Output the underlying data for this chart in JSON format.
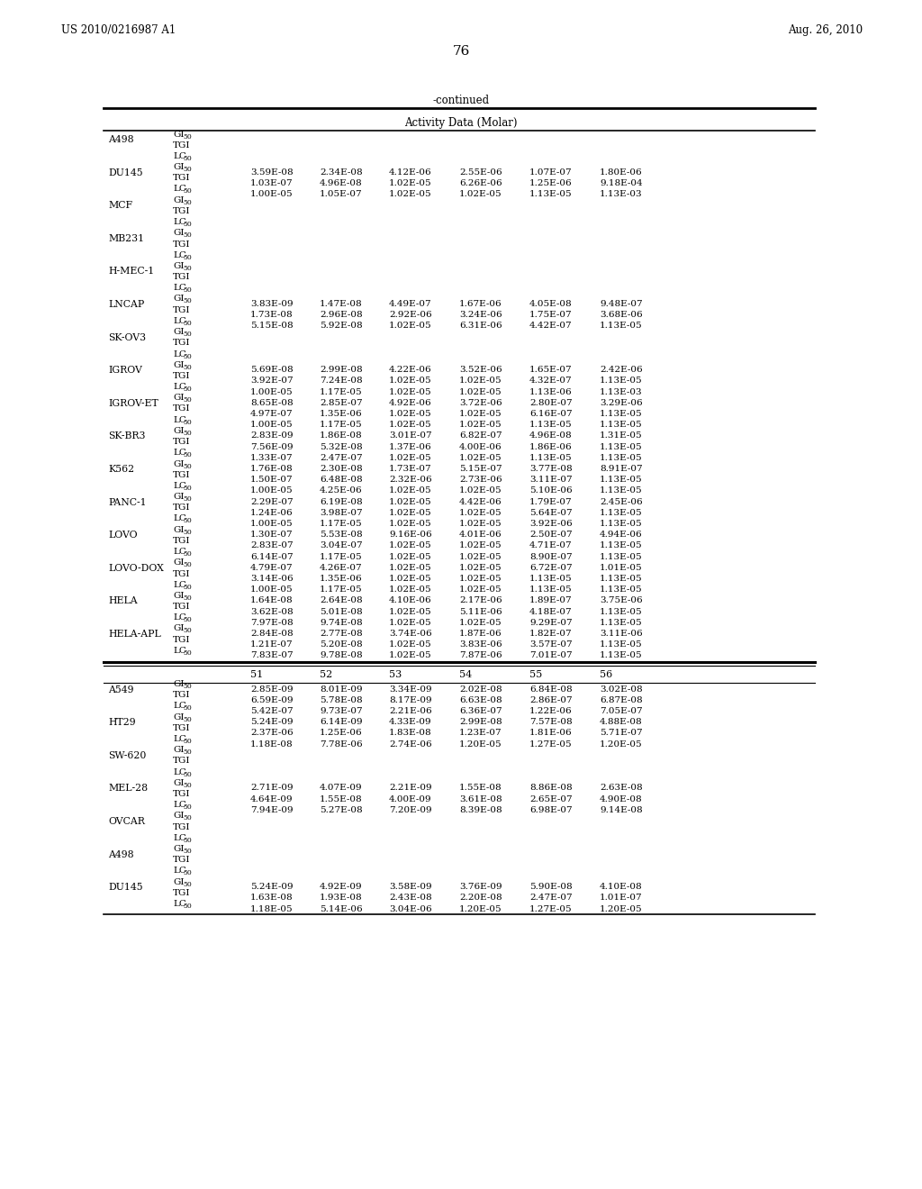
{
  "header_left": "US 2010/0216987 A1",
  "header_right": "Aug. 26, 2010",
  "page_number": "76",
  "continued_label": "-continued",
  "table_header": "Activity Data (Molar)",
  "section1_rows": [
    [
      "A498",
      "GI50",
      "",
      "",
      "",
      "",
      "",
      ""
    ],
    [
      "",
      "TGI",
      "",
      "",
      "",
      "",
      "",
      ""
    ],
    [
      "",
      "LC50",
      "",
      "",
      "",
      "",
      "",
      ""
    ],
    [
      "DU145",
      "GI50",
      "3.59E-08",
      "2.34E-08",
      "4.12E-06",
      "2.55E-06",
      "1.07E-07",
      "1.80E-06"
    ],
    [
      "",
      "TGI",
      "1.03E-07",
      "4.96E-08",
      "1.02E-05",
      "6.26E-06",
      "1.25E-06",
      "9.18E-04"
    ],
    [
      "",
      "LC50",
      "1.00E-05",
      "1.05E-07",
      "1.02E-05",
      "1.02E-05",
      "1.13E-05",
      "1.13E-03"
    ],
    [
      "MCF",
      "GI50",
      "",
      "",
      "",
      "",
      "",
      ""
    ],
    [
      "",
      "TGI",
      "",
      "",
      "",
      "",
      "",
      ""
    ],
    [
      "",
      "LC50",
      "",
      "",
      "",
      "",
      "",
      ""
    ],
    [
      "MB231",
      "GI50",
      "",
      "",
      "",
      "",
      "",
      ""
    ],
    [
      "",
      "TGI",
      "",
      "",
      "",
      "",
      "",
      ""
    ],
    [
      "",
      "LC50",
      "",
      "",
      "",
      "",
      "",
      ""
    ],
    [
      "H-MEC-1",
      "GI50",
      "",
      "",
      "",
      "",
      "",
      ""
    ],
    [
      "",
      "TGI",
      "",
      "",
      "",
      "",
      "",
      ""
    ],
    [
      "",
      "LC50",
      "",
      "",
      "",
      "",
      "",
      ""
    ],
    [
      "LNCAP",
      "GI50",
      "3.83E-09",
      "1.47E-08",
      "4.49E-07",
      "1.67E-06",
      "4.05E-08",
      "9.48E-07"
    ],
    [
      "",
      "TGI",
      "1.73E-08",
      "2.96E-08",
      "2.92E-06",
      "3.24E-06",
      "1.75E-07",
      "3.68E-06"
    ],
    [
      "",
      "LC50",
      "5.15E-08",
      "5.92E-08",
      "1.02E-05",
      "6.31E-06",
      "4.42E-07",
      "1.13E-05"
    ],
    [
      "SK-OV3",
      "GI50",
      "",
      "",
      "",
      "",
      "",
      ""
    ],
    [
      "",
      "TGI",
      "",
      "",
      "",
      "",
      "",
      ""
    ],
    [
      "",
      "LC50",
      "",
      "",
      "",
      "",
      "",
      ""
    ],
    [
      "IGROV",
      "GI50",
      "5.69E-08",
      "2.99E-08",
      "4.22E-06",
      "3.52E-06",
      "1.65E-07",
      "2.42E-06"
    ],
    [
      "",
      "TGI",
      "3.92E-07",
      "7.24E-08",
      "1.02E-05",
      "1.02E-05",
      "4.32E-07",
      "1.13E-05"
    ],
    [
      "",
      "LC50",
      "1.00E-05",
      "1.17E-05",
      "1.02E-05",
      "1.02E-05",
      "1.13E-06",
      "1.13E-03"
    ],
    [
      "IGROV-ET",
      "GI50",
      "8.65E-08",
      "2.85E-07",
      "4.92E-06",
      "3.72E-06",
      "2.80E-07",
      "3.29E-06"
    ],
    [
      "",
      "TGI",
      "4.97E-07",
      "1.35E-06",
      "1.02E-05",
      "1.02E-05",
      "6.16E-07",
      "1.13E-05"
    ],
    [
      "",
      "LC50",
      "1.00E-05",
      "1.17E-05",
      "1.02E-05",
      "1.02E-05",
      "1.13E-05",
      "1.13E-05"
    ],
    [
      "SK-BR3",
      "GI50",
      "2.83E-09",
      "1.86E-08",
      "3.01E-07",
      "6.82E-07",
      "4.96E-08",
      "1.31E-05"
    ],
    [
      "",
      "TGI",
      "7.56E-09",
      "5.32E-08",
      "1.37E-06",
      "4.00E-06",
      "1.86E-06",
      "1.13E-05"
    ],
    [
      "",
      "LC50",
      "1.33E-07",
      "2.47E-07",
      "1.02E-05",
      "1.02E-05",
      "1.13E-05",
      "1.13E-05"
    ],
    [
      "K562",
      "GI50",
      "1.76E-08",
      "2.30E-08",
      "1.73E-07",
      "5.15E-07",
      "3.77E-08",
      "8.91E-07"
    ],
    [
      "",
      "TGI",
      "1.50E-07",
      "6.48E-08",
      "2.32E-06",
      "2.73E-06",
      "3.11E-07",
      "1.13E-05"
    ],
    [
      "",
      "LC50",
      "1.00E-05",
      "4.25E-06",
      "1.02E-05",
      "1.02E-05",
      "5.10E-06",
      "1.13E-05"
    ],
    [
      "PANC-1",
      "GI50",
      "2.29E-07",
      "6.19E-08",
      "1.02E-05",
      "4.42E-06",
      "1.79E-07",
      "2.45E-06"
    ],
    [
      "",
      "TGI",
      "1.24E-06",
      "3.98E-07",
      "1.02E-05",
      "1.02E-05",
      "5.64E-07",
      "1.13E-05"
    ],
    [
      "",
      "LC50",
      "1.00E-05",
      "1.17E-05",
      "1.02E-05",
      "1.02E-05",
      "3.92E-06",
      "1.13E-05"
    ],
    [
      "LOVO",
      "GI50",
      "1.30E-07",
      "5.53E-08",
      "9.16E-06",
      "4.01E-06",
      "2.50E-07",
      "4.94E-06"
    ],
    [
      "",
      "TGI",
      "2.83E-07",
      "3.04E-07",
      "1.02E-05",
      "1.02E-05",
      "4.71E-07",
      "1.13E-05"
    ],
    [
      "",
      "LC50",
      "6.14E-07",
      "1.17E-05",
      "1.02E-05",
      "1.02E-05",
      "8.90E-07",
      "1.13E-05"
    ],
    [
      "LOVO-DOX",
      "GI50",
      "4.79E-07",
      "4.26E-07",
      "1.02E-05",
      "1.02E-05",
      "6.72E-07",
      "1.01E-05"
    ],
    [
      "",
      "TGI",
      "3.14E-06",
      "1.35E-06",
      "1.02E-05",
      "1.02E-05",
      "1.13E-05",
      "1.13E-05"
    ],
    [
      "",
      "LC50",
      "1.00E-05",
      "1.17E-05",
      "1.02E-05",
      "1.02E-05",
      "1.13E-05",
      "1.13E-05"
    ],
    [
      "HELA",
      "GI50",
      "1.64E-08",
      "2.64E-08",
      "4.10E-06",
      "2.17E-06",
      "1.89E-07",
      "3.75E-06"
    ],
    [
      "",
      "TGI",
      "3.62E-08",
      "5.01E-08",
      "1.02E-05",
      "5.11E-06",
      "4.18E-07",
      "1.13E-05"
    ],
    [
      "",
      "LC50",
      "7.97E-08",
      "9.74E-08",
      "1.02E-05",
      "1.02E-05",
      "9.29E-07",
      "1.13E-05"
    ],
    [
      "HELA-APL",
      "GI50",
      "2.84E-08",
      "2.77E-08",
      "3.74E-06",
      "1.87E-06",
      "1.82E-07",
      "3.11E-06"
    ],
    [
      "",
      "TGI",
      "1.21E-07",
      "5.20E-08",
      "1.02E-05",
      "3.83E-06",
      "3.57E-07",
      "1.13E-05"
    ],
    [
      "",
      "LC50",
      "7.83E-07",
      "9.78E-08",
      "1.02E-05",
      "7.87E-06",
      "7.01E-07",
      "1.13E-05"
    ]
  ],
  "section2_col_headers": [
    "51",
    "52",
    "53",
    "54",
    "55",
    "56"
  ],
  "section2_rows": [
    [
      "A549",
      "GI50",
      "2.85E-09",
      "8.01E-09",
      "3.34E-09",
      "2.02E-08",
      "6.84E-08",
      "3.02E-08"
    ],
    [
      "",
      "TGI",
      "6.59E-09",
      "5.78E-08",
      "8.17E-09",
      "6.63E-08",
      "2.86E-07",
      "6.87E-08"
    ],
    [
      "",
      "LC50",
      "5.42E-07",
      "9.73E-07",
      "2.21E-06",
      "6.36E-07",
      "1.22E-06",
      "7.05E-07"
    ],
    [
      "HT29",
      "GI50",
      "5.24E-09",
      "6.14E-09",
      "4.33E-09",
      "2.99E-08",
      "7.57E-08",
      "4.88E-08"
    ],
    [
      "",
      "TGI",
      "2.37E-06",
      "1.25E-06",
      "1.83E-08",
      "1.23E-07",
      "1.81E-06",
      "5.71E-07"
    ],
    [
      "",
      "LC50",
      "1.18E-08",
      "7.78E-06",
      "2.74E-06",
      "1.20E-05",
      "1.27E-05",
      "1.20E-05"
    ],
    [
      "SW-620",
      "GI50",
      "",
      "",
      "",
      "",
      "",
      ""
    ],
    [
      "",
      "TGI",
      "",
      "",
      "",
      "",
      "",
      ""
    ],
    [
      "",
      "LC50",
      "",
      "",
      "",
      "",
      "",
      ""
    ],
    [
      "MEL-28",
      "GI50",
      "2.71E-09",
      "4.07E-09",
      "2.21E-09",
      "1.55E-08",
      "8.86E-08",
      "2.63E-08"
    ],
    [
      "",
      "TGI",
      "4.64E-09",
      "1.55E-08",
      "4.00E-09",
      "3.61E-08",
      "2.65E-07",
      "4.90E-08"
    ],
    [
      "",
      "LC50",
      "7.94E-09",
      "5.27E-08",
      "7.20E-09",
      "8.39E-08",
      "6.98E-07",
      "9.14E-08"
    ],
    [
      "OVCAR",
      "GI50",
      "",
      "",
      "",
      "",
      "",
      ""
    ],
    [
      "",
      "TGI",
      "",
      "",
      "",
      "",
      "",
      ""
    ],
    [
      "",
      "LC50",
      "",
      "",
      "",
      "",
      "",
      ""
    ],
    [
      "A498",
      "GI50",
      "",
      "",
      "",
      "",
      "",
      ""
    ],
    [
      "",
      "TGI",
      "",
      "",
      "",
      "",
      "",
      ""
    ],
    [
      "",
      "LC50",
      "",
      "",
      "",
      "",
      "",
      ""
    ],
    [
      "DU145",
      "GI50",
      "5.24E-09",
      "4.92E-09",
      "3.58E-09",
      "3.76E-09",
      "5.90E-08",
      "4.10E-08"
    ],
    [
      "",
      "TGI",
      "1.63E-08",
      "1.93E-08",
      "2.43E-08",
      "2.20E-08",
      "2.47E-07",
      "1.01E-07"
    ],
    [
      "",
      "LC50",
      "1.18E-05",
      "5.14E-06",
      "3.04E-06",
      "1.20E-05",
      "1.27E-05",
      "1.20E-05"
    ]
  ]
}
